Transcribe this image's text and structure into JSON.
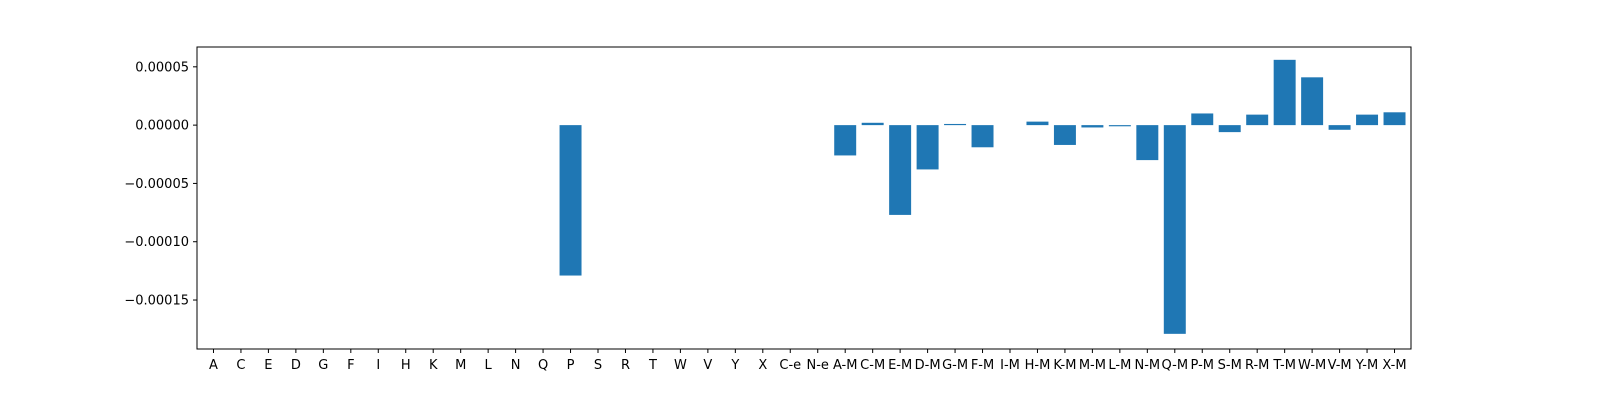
{
  "chart_data": {
    "type": "bar",
    "categories": [
      "A",
      "C",
      "E",
      "D",
      "G",
      "F",
      "I",
      "H",
      "K",
      "M",
      "L",
      "N",
      "Q",
      "P",
      "S",
      "R",
      "T",
      "W",
      "V",
      "Y",
      "X",
      "C-e",
      "N-e",
      "A-M",
      "C-M",
      "E-M",
      "D-M",
      "G-M",
      "F-M",
      "I-M",
      "H-M",
      "K-M",
      "M-M",
      "L-M",
      "N-M",
      "Q-M",
      "P-M",
      "S-M",
      "R-M",
      "T-M",
      "W-M",
      "V-M",
      "Y-M",
      "X-M"
    ],
    "values": [
      0,
      0,
      0,
      0,
      0,
      0,
      0,
      0,
      0,
      0,
      0,
      0,
      0,
      -0.000129,
      0,
      0,
      0,
      0,
      0,
      0,
      0,
      0,
      0,
      -2.6e-05,
      2e-06,
      -7.7e-05,
      -3.8e-05,
      1e-06,
      -1.9e-05,
      0,
      3e-06,
      -1.7e-05,
      -2e-06,
      -1e-06,
      -3e-05,
      -0.000179,
      1e-05,
      -6e-06,
      9e-06,
      5.6e-05,
      4.1e-05,
      -4e-06,
      9e-06,
      1.1e-05
    ],
    "ylim": [
      -0.000192,
      6.7e-05
    ],
    "yticks": [
      5e-05,
      0.0,
      -5e-05,
      -0.0001,
      -0.00015
    ],
    "ytick_labels": [
      "0.00005",
      "0.00000",
      "−0.00005",
      "−0.00010",
      "−0.00015"
    ],
    "title": "",
    "xlabel": "",
    "ylabel": "",
    "bar_color": "#1f77b4",
    "grid": false,
    "legend": "none"
  }
}
